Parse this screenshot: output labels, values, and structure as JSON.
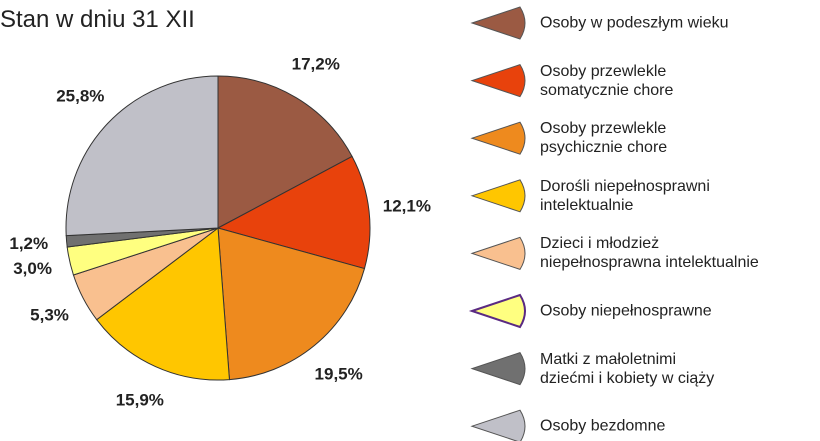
{
  "chart_data": {
    "type": "pie",
    "title": "Stan w dniu 31 XII",
    "categories": [
      "Osoby w podeszłym wieku",
      "Osoby przewlekle\nsomatycznie chore",
      "Osoby przewlekle\npsychicznie chore",
      "Dorośli niepełnosprawni\nintelektualnie",
      "Dzieci i młodzież\nniepełnosprawna intelektualnie",
      "Osoby niepełnosprawne",
      "Matki z małoletnimi\ndziećmi i kobiety w ciąży",
      "Osoby bezdomne"
    ],
    "values": [
      17.2,
      12.1,
      19.5,
      15.9,
      5.3,
      3.0,
      1.2,
      25.8
    ],
    "value_labels": [
      "17,2%",
      "12,1%",
      "19,5%",
      "15,9%",
      "5,3%",
      "3,0%",
      "1,2%",
      "25,8%"
    ],
    "colors": [
      "#9b5a43",
      "#e8420c",
      "#ee8a1e",
      "#ffc600",
      "#f9c08f",
      "#ffff80",
      "#707070",
      "#c0c0c8"
    ],
    "legend": "right"
  }
}
